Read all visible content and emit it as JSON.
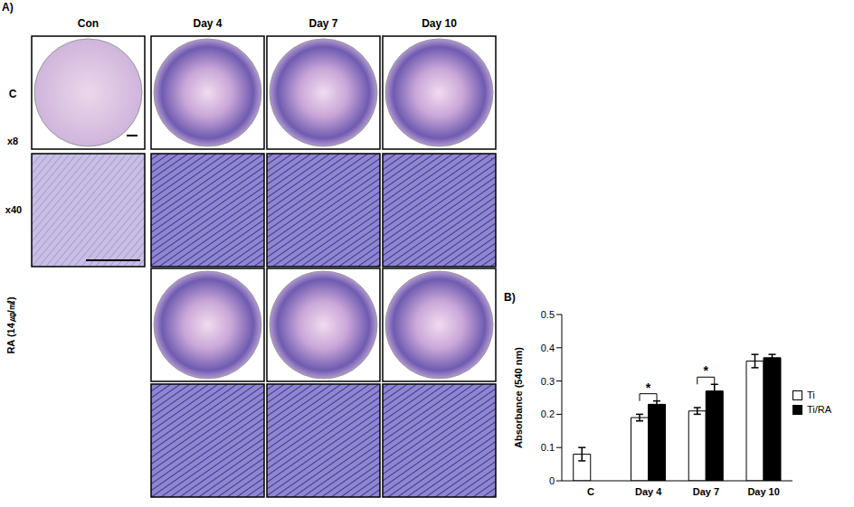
{
  "panel_a": {
    "label": "A)",
    "columns": [
      "Con",
      "Day 4",
      "Day 7",
      "Day 10"
    ],
    "groups": [
      {
        "label": "C",
        "rows": [
          "x8",
          "x40"
        ]
      },
      {
        "label": "RA (14㎍/㎖)"
      }
    ]
  },
  "chart_data": {
    "type": "bar",
    "title": "B)",
    "y_label": "Absorbance (540 nm)",
    "categories": [
      "C",
      "Day 4",
      "Day 7",
      "Day 10"
    ],
    "series": [
      {
        "name": "Ti",
        "color": "#ffffff",
        "values": [
          0.08,
          0.19,
          0.21,
          0.36
        ],
        "errors": [
          0.02,
          0.01,
          0.01,
          0.02
        ]
      },
      {
        "name": "Ti/RA",
        "color": "#000000",
        "values": [
          null,
          0.23,
          0.27,
          0.37
        ],
        "errors": [
          null,
          0.01,
          0.02,
          0.01
        ]
      }
    ],
    "ylim": [
      0,
      0.5
    ],
    "yticks": [
      0,
      0.1,
      0.2,
      0.3,
      0.4,
      0.5
    ],
    "annotations": [
      {
        "category": "Day 4",
        "text": "*"
      },
      {
        "category": "Day 7",
        "text": "*"
      }
    ],
    "legend": "right",
    "grid": false
  }
}
